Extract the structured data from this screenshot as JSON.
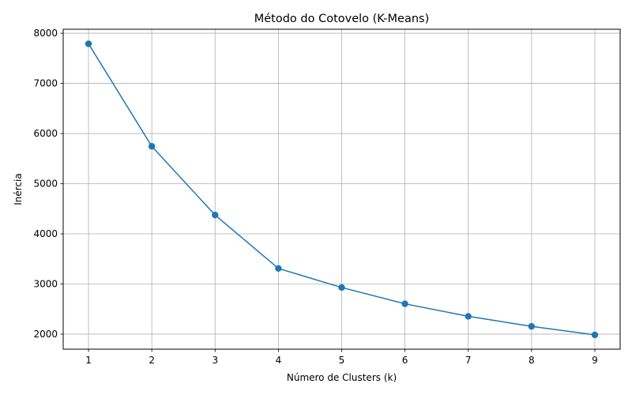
{
  "chart_data": {
    "type": "line",
    "title": "Método do Cotovelo (K-Means)",
    "xlabel": "Número de Clusters (k)",
    "ylabel": "Inércia",
    "x": [
      1,
      2,
      3,
      4,
      5,
      6,
      7,
      8,
      9
    ],
    "series": [
      {
        "values": [
          7790,
          5745,
          4375,
          3310,
          2930,
          2605,
          2355,
          2155,
          1985
        ],
        "color": "#1f77b4",
        "marker": "circle"
      }
    ],
    "xlim": [
      0.6,
      9.4
    ],
    "ylim": [
      1700,
      8080
    ],
    "xticks": [
      1,
      2,
      3,
      4,
      5,
      6,
      7,
      8,
      9
    ],
    "yticks": [
      2000,
      3000,
      4000,
      5000,
      6000,
      7000,
      8000
    ],
    "grid": true
  }
}
